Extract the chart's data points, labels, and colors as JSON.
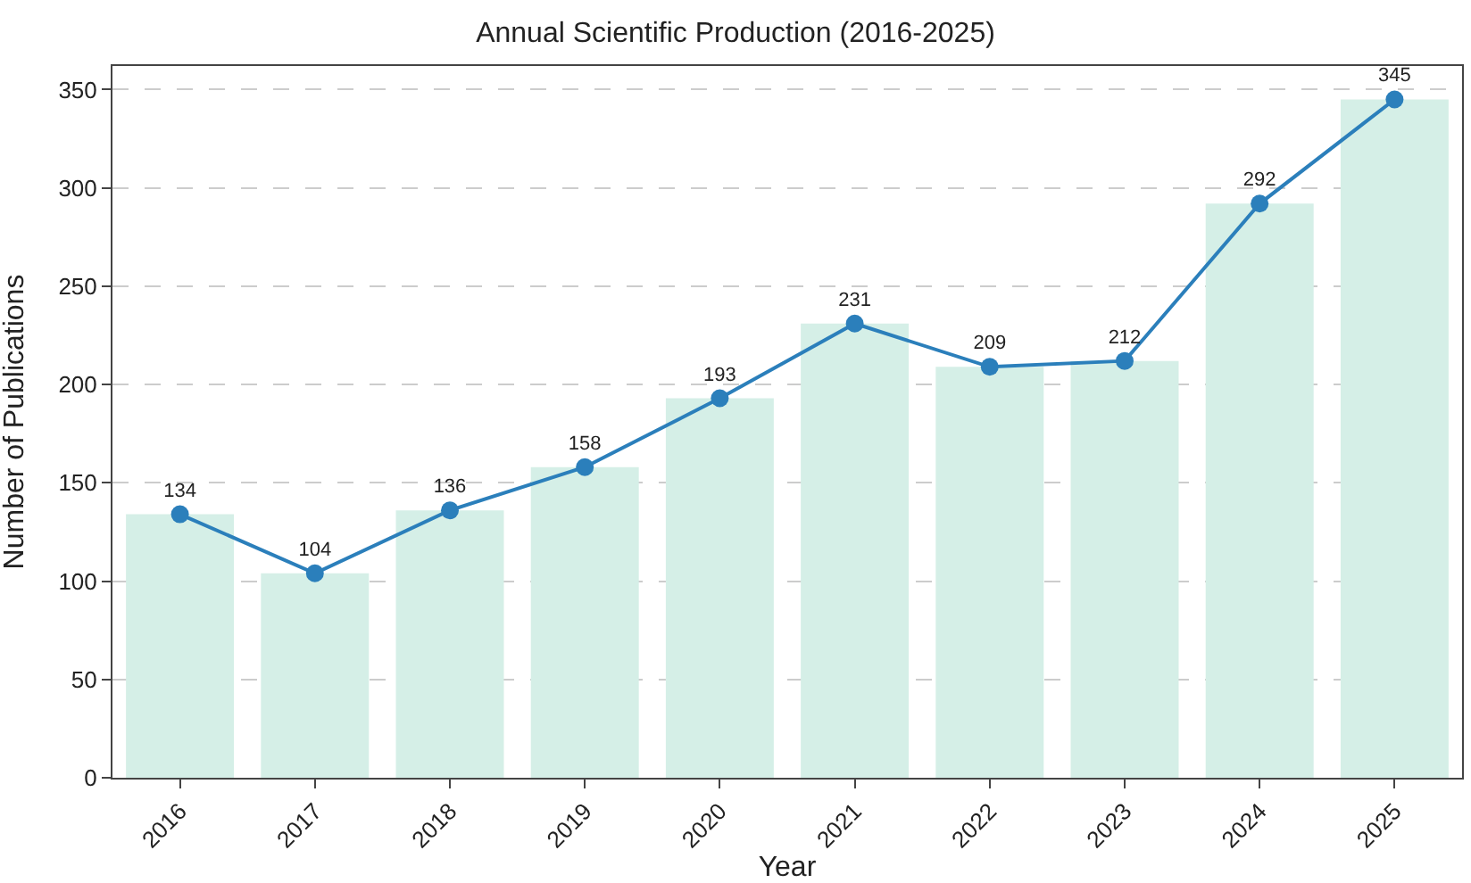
{
  "chart_data": {
    "type": "bar",
    "title": "Annual Scientific Production (2016-2025)",
    "xlabel": "Year",
    "ylabel": "Number of Publications",
    "categories": [
      "2016",
      "2017",
      "2018",
      "2019",
      "2020",
      "2021",
      "2022",
      "2023",
      "2024",
      "2025"
    ],
    "series": [
      {
        "color": "#d5efe7",
        "values": [
          134,
          104,
          136,
          158,
          193,
          231,
          209,
          212,
          292,
          345
        ]
      },
      {
        "type": "line",
        "color": "#2b7fbb",
        "marker": "circle",
        "line_style": "solid",
        "data_labels": true,
        "values": [
          134,
          104,
          136,
          158,
          193,
          231,
          209,
          212,
          292,
          345
        ]
      }
    ],
    "ylim": [
      0,
      362
    ],
    "yticks": [
      0,
      50,
      100,
      150,
      200,
      250,
      300,
      350
    ],
    "grid": "y"
  }
}
